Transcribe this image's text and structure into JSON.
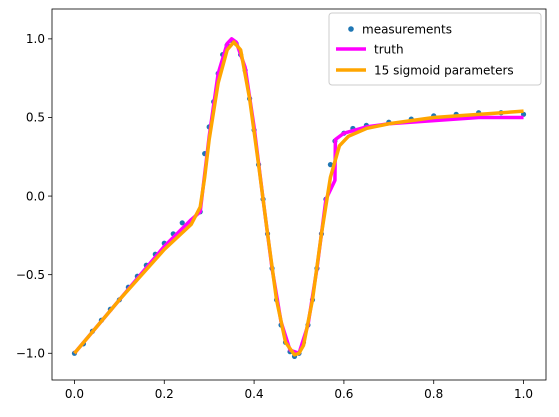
{
  "chart_data": {
    "type": "line",
    "title": "",
    "xlabel": "",
    "ylabel": "",
    "xlim": [
      -0.05,
      1.05
    ],
    "ylim": [
      -1.17,
      1.19
    ],
    "x_ticks": [
      0.0,
      0.2,
      0.4,
      0.6,
      0.8,
      1.0
    ],
    "x_tick_labels": [
      "0.0",
      "0.2",
      "0.4",
      "0.6",
      "0.8",
      "1.0"
    ],
    "y_ticks": [
      -1.0,
      -0.5,
      0.0,
      0.5,
      1.0
    ],
    "y_tick_labels": [
      "−1.0",
      "−0.5",
      "0.0",
      "0.5",
      "1.0"
    ],
    "grid": false,
    "legend_position": "top-right",
    "series": [
      {
        "name": "measurements",
        "kind": "scatter",
        "color": "#1f77b4",
        "x": [
          0.0,
          0.02,
          0.04,
          0.06,
          0.08,
          0.1,
          0.12,
          0.14,
          0.16,
          0.18,
          0.2,
          0.22,
          0.24,
          0.26,
          0.28,
          0.29,
          0.3,
          0.31,
          0.32,
          0.33,
          0.34,
          0.35,
          0.36,
          0.37,
          0.38,
          0.39,
          0.4,
          0.41,
          0.42,
          0.43,
          0.44,
          0.45,
          0.46,
          0.47,
          0.48,
          0.49,
          0.5,
          0.51,
          0.52,
          0.53,
          0.54,
          0.55,
          0.56,
          0.57,
          0.58,
          0.6,
          0.62,
          0.65,
          0.7,
          0.75,
          0.8,
          0.85,
          0.9,
          0.95,
          1.0
        ],
        "y": [
          -1.0,
          -0.94,
          -0.86,
          -0.79,
          -0.72,
          -0.66,
          -0.58,
          -0.51,
          -0.44,
          -0.37,
          -0.3,
          -0.24,
          -0.17,
          -0.16,
          -0.1,
          0.27,
          0.44,
          0.6,
          0.78,
          0.9,
          0.96,
          0.99,
          0.97,
          0.9,
          0.8,
          0.62,
          0.42,
          0.2,
          -0.02,
          -0.24,
          -0.46,
          -0.66,
          -0.82,
          -0.93,
          -0.99,
          -1.02,
          -1.0,
          -0.93,
          -0.82,
          -0.66,
          -0.46,
          -0.24,
          -0.02,
          0.2,
          0.35,
          0.4,
          0.43,
          0.45,
          0.47,
          0.49,
          0.51,
          0.52,
          0.53,
          0.53,
          0.52
        ]
      },
      {
        "name": "truth",
        "kind": "line",
        "color": "#ff00ff",
        "x": [
          0.0,
          0.1,
          0.2,
          0.26,
          0.28,
          0.3,
          0.32,
          0.34,
          0.35,
          0.36,
          0.38,
          0.4,
          0.42,
          0.44,
          0.46,
          0.48,
          0.5,
          0.52,
          0.54,
          0.56,
          0.58,
          0.581,
          0.6,
          0.65,
          0.7,
          0.8,
          0.9,
          1.0
        ],
        "y": [
          -1.0,
          -0.66,
          -0.32,
          -0.15,
          -0.1,
          0.38,
          0.78,
          0.97,
          1.0,
          0.98,
          0.82,
          0.44,
          -0.02,
          -0.46,
          -0.8,
          -0.98,
          -1.0,
          -0.82,
          -0.46,
          -0.02,
          0.1,
          0.36,
          0.4,
          0.44,
          0.46,
          0.48,
          0.5,
          0.5
        ]
      },
      {
        "name": "15 sigmoid parameters",
        "kind": "line",
        "color": "#ffa500",
        "x": [
          0.0,
          0.1,
          0.2,
          0.26,
          0.28,
          0.29,
          0.3,
          0.32,
          0.34,
          0.355,
          0.37,
          0.39,
          0.41,
          0.43,
          0.45,
          0.47,
          0.49,
          0.5,
          0.51,
          0.53,
          0.55,
          0.57,
          0.59,
          0.61,
          0.65,
          0.7,
          0.8,
          0.9,
          1.0
        ],
        "y": [
          -1.0,
          -0.66,
          -0.34,
          -0.18,
          -0.07,
          0.12,
          0.36,
          0.72,
          0.93,
          0.98,
          0.93,
          0.62,
          0.2,
          -0.24,
          -0.66,
          -0.93,
          -1.01,
          -1.0,
          -0.95,
          -0.66,
          -0.24,
          0.12,
          0.32,
          0.38,
          0.43,
          0.46,
          0.5,
          0.52,
          0.54
        ]
      }
    ]
  }
}
